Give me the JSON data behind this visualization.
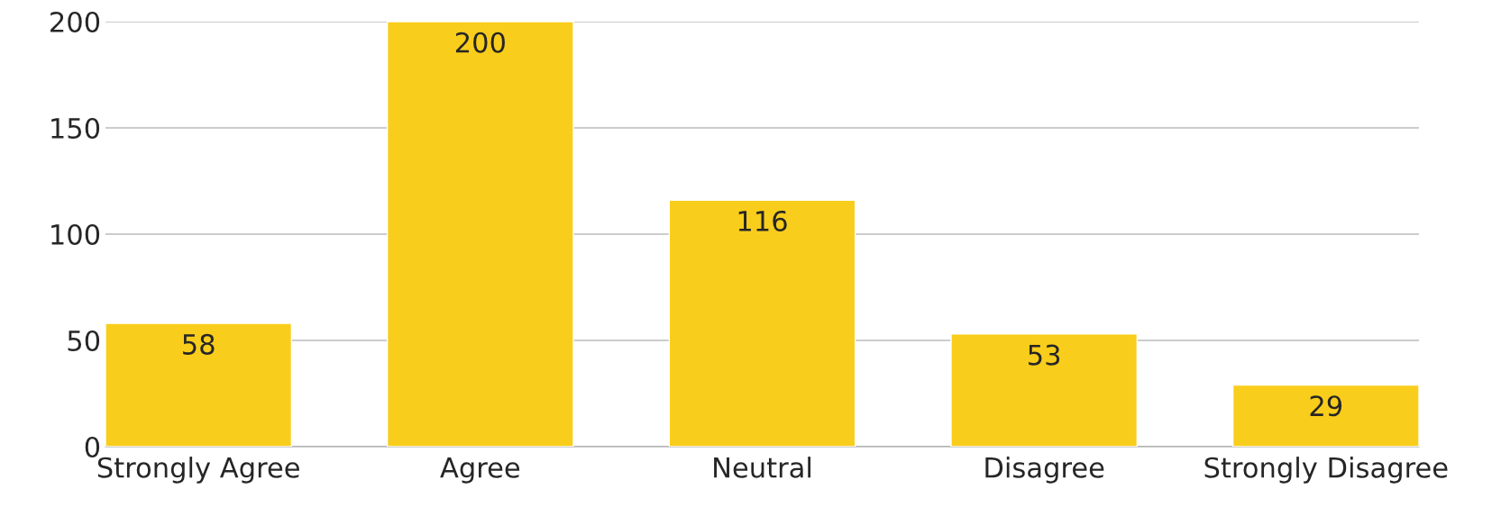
{
  "chart_data": {
    "type": "bar",
    "categories": [
      "Strongly Agree",
      "Agree",
      "Neutral",
      "Disagree",
      "Strongly Disagree"
    ],
    "values": [
      58,
      200,
      116,
      53,
      29
    ],
    "color": "#f9cd1b",
    "ylim": [
      0,
      200
    ],
    "yticks": [
      0,
      50,
      100,
      150,
      200
    ],
    "grid": "y",
    "data_labels": true
  }
}
